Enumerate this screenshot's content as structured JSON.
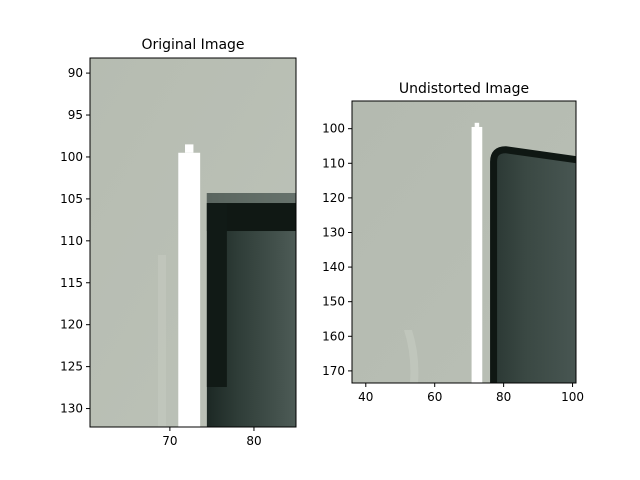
{
  "chart_data": [
    {
      "type": "heatmap",
      "title": "Original Image",
      "xlim": [
        60.5,
        85
      ],
      "ylim": [
        132.2,
        88.2
      ],
      "xticks": [
        70,
        80
      ],
      "yticks": [
        90,
        95,
        100,
        105,
        110,
        115,
        120,
        125,
        130
      ],
      "grid": false,
      "colors": {
        "background": "#b8beb3",
        "dark_object": "#1f2a26",
        "edge": "#101814",
        "marker": "#ffffff"
      },
      "marker": {
        "x_range": [
          71.0,
          73.6
        ],
        "y_range": [
          99.5,
          132.2
        ],
        "cap_x": [
          71.8,
          72.8
        ],
        "cap_y": [
          98.5,
          99.5
        ]
      },
      "dark_region": {
        "x_start": 74.4,
        "y_top": 104.3
      }
    },
    {
      "type": "heatmap",
      "title": "Undistorted Image",
      "xlim": [
        36,
        101
      ],
      "ylim": [
        173.5,
        92
      ],
      "xticks": [
        40,
        60,
        80,
        100
      ],
      "yticks": [
        100,
        110,
        120,
        130,
        140,
        150,
        160,
        170
      ],
      "grid": false,
      "colors": {
        "background": "#b8beb3",
        "dark_object": "#33403b",
        "edge": "#0f1713",
        "marker": "#ffffff"
      },
      "marker": {
        "x_range": [
          70.7,
          73.8
        ],
        "y_range": [
          99.5,
          173.5
        ],
        "cap_x": [
          71.6,
          72.9
        ],
        "cap_y": [
          98.3,
          99.5
        ]
      },
      "dark_region": {
        "x_start": 76.5,
        "y_top": 105.5
      }
    }
  ]
}
